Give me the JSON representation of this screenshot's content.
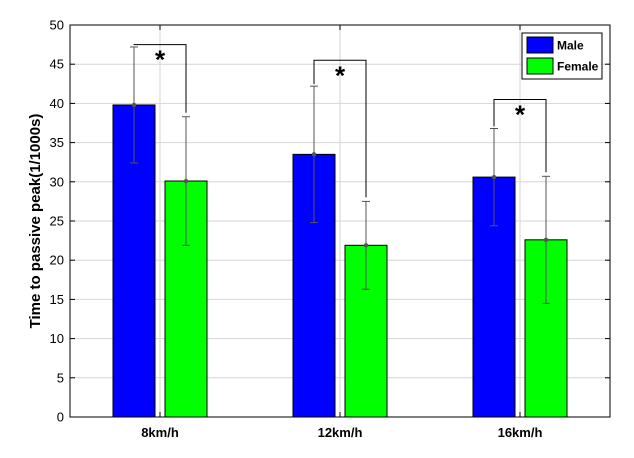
{
  "chart_data": {
    "type": "bar",
    "ylabel": "Time to passive peak(1/1000s)",
    "ylim": [
      0,
      50
    ],
    "yticks": [
      0,
      5,
      10,
      15,
      20,
      25,
      30,
      35,
      40,
      45,
      50
    ],
    "grid": true,
    "legend_position": "top-right",
    "categories": [
      "8km/h",
      "12km/h",
      "16km/h"
    ],
    "series": [
      {
        "name": "Male",
        "color": "#0000ff",
        "values": [
          39.8,
          33.5,
          30.6
        ],
        "errors": [
          7.4,
          8.7,
          6.2
        ]
      },
      {
        "name": "Female",
        "color": "#00ff00",
        "values": [
          30.1,
          21.9,
          22.6
        ],
        "errors": [
          8.2,
          5.6,
          8.1
        ]
      }
    ],
    "significance": [
      {
        "category": "8km/h",
        "label": "*",
        "bracket_top": 47.5
      },
      {
        "category": "12km/h",
        "label": "*",
        "bracket_top": 45.5
      },
      {
        "category": "16km/h",
        "label": "*",
        "bracket_top": 40.5
      }
    ]
  }
}
